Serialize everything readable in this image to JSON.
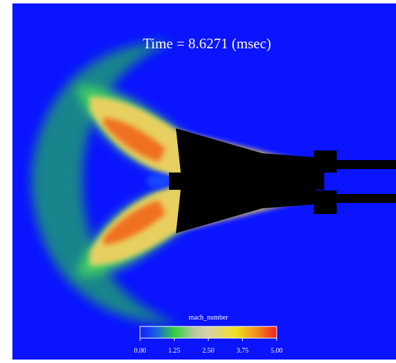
{
  "title": "Time = 8.6271 (msec)",
  "colorbar": {
    "label": "mach_number",
    "range": [
      0,
      5
    ],
    "ticks": [
      {
        "value": 0,
        "label": "0.00"
      },
      {
        "value": 1.25,
        "label": "1.25"
      },
      {
        "value": 2.5,
        "label": "2.50"
      },
      {
        "value": 3.75,
        "label": "3.75"
      },
      {
        "value": 5,
        "label": "5.00"
      }
    ]
  }
}
